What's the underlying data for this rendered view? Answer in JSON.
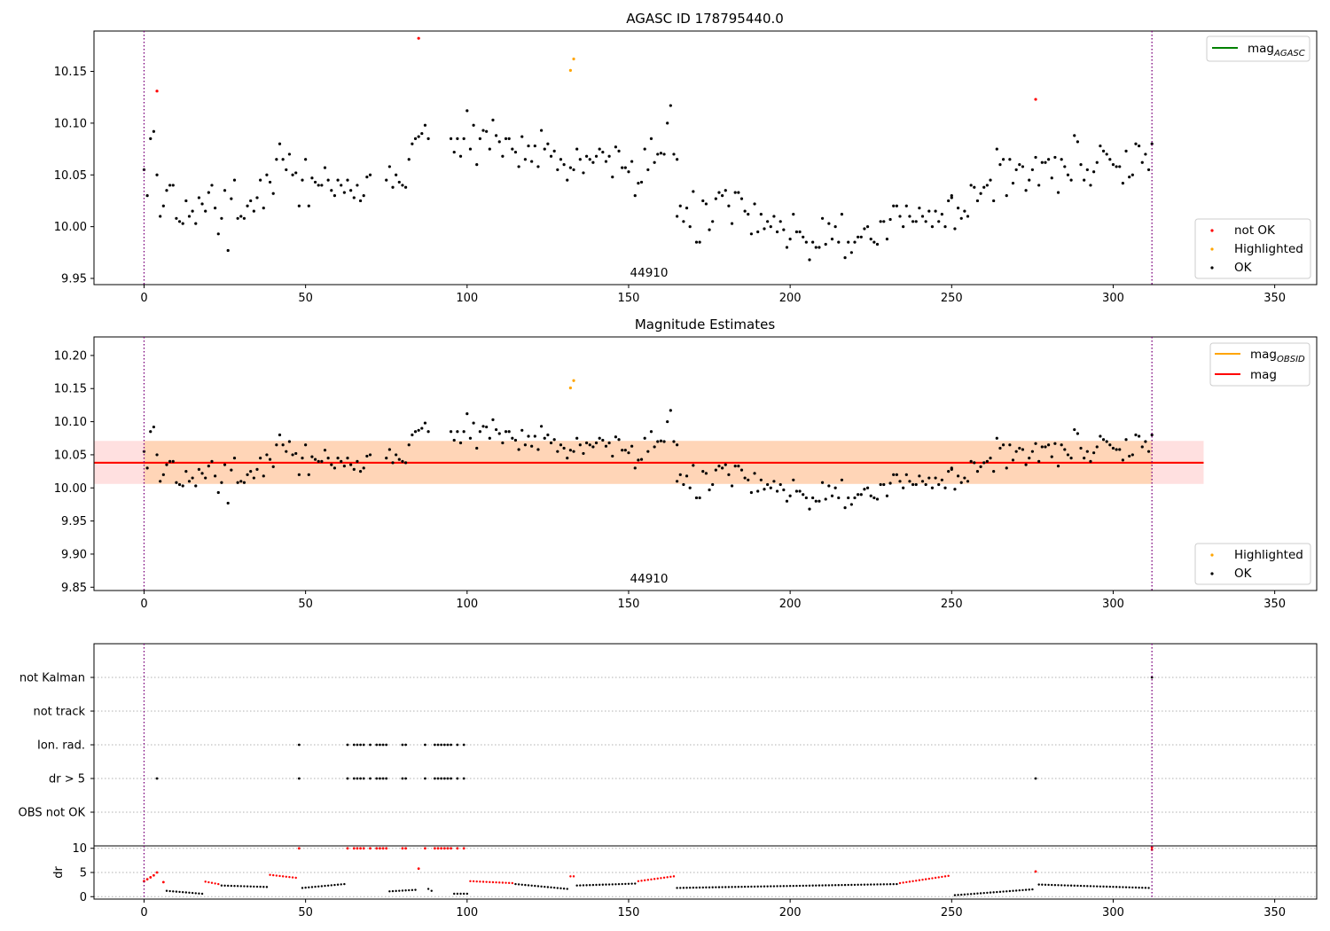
{
  "chart_data": [
    {
      "type": "scatter",
      "title": "AGASC ID 178795440.0",
      "annotation": "44910",
      "xlim": [
        -15.5,
        363
      ],
      "ylim": [
        9.944,
        10.189
      ],
      "x_ticks": [
        0,
        50,
        100,
        150,
        200,
        250,
        300,
        350
      ],
      "y_ticks": [
        "9.95",
        "10.00",
        "10.05",
        "10.10",
        "10.15"
      ],
      "y_tick_values": [
        9.95,
        10.0,
        10.05,
        10.1,
        10.15
      ],
      "vlines": [
        0,
        312
      ],
      "legend_lines": [
        {
          "label": "mag",
          "subscript": "AGASC",
          "color": "#008000"
        }
      ],
      "legend_markers": [
        {
          "label": "not OK",
          "color": "#ff0000"
        },
        {
          "label": "Highlighted",
          "color": "#ffa500"
        },
        {
          "label": "OK",
          "color": "#000000"
        }
      ],
      "series": [
        {
          "name": "not OK",
          "color": "#ff0000",
          "points": [
            [
              4,
              10.131
            ],
            [
              85,
              10.182
            ],
            [
              276,
              10.123
            ]
          ]
        },
        {
          "name": "Highlighted",
          "color": "#ffa500",
          "points": [
            [
              132,
              10.151
            ],
            [
              133,
              10.162
            ]
          ]
        }
      ],
      "ok_segments": [
        {
          "x_start": 0,
          "x_end": 70,
          "y": [
            10.055,
            10.03,
            10.085,
            10.092,
            10.05,
            10.01,
            10.02,
            10.035,
            10.04,
            10.04,
            10.008,
            10.005,
            10.003,
            10.025,
            10.01,
            10.015,
            10.003,
            10.028,
            10.022,
            10.015,
            10.033,
            10.04,
            10.018,
            9.993,
            10.008,
            10.035,
            9.977,
            10.027,
            10.045,
            10.008,
            10.01,
            10.008,
            10.02,
            10.025,
            10.015,
            10.028,
            10.045,
            10.018,
            10.05,
            10.043,
            10.032,
            10.065,
            10.08,
            10.065,
            10.055,
            10.07,
            10.05,
            10.052,
            10.02,
            10.045,
            10.065,
            10.02,
            10.047,
            10.043,
            10.04,
            10.04,
            10.057,
            10.045,
            10.035,
            10.03,
            10.045,
            10.04,
            10.033,
            10.045,
            10.035,
            10.028,
            10.04,
            10.025,
            10.03,
            10.048,
            10.05
          ]
        },
        {
          "x_start": 75,
          "x_end": 88,
          "y": [
            10.045,
            10.058,
            10.038,
            10.05,
            10.043,
            10.04,
            10.038,
            10.065,
            10.08,
            10.085,
            10.087,
            10.09,
            10.098,
            10.085
          ]
        },
        {
          "x_start": 95,
          "x_end": 165,
          "y": [
            10.085,
            10.072,
            10.085,
            10.068,
            10.085,
            10.112,
            10.075,
            10.098,
            10.06,
            10.085,
            10.093,
            10.092,
            10.075,
            10.103,
            10.088,
            10.082,
            10.068,
            10.085,
            10.085,
            10.075,
            10.072,
            10.058,
            10.087,
            10.065,
            10.078,
            10.063,
            10.078,
            10.058,
            10.093,
            10.075,
            10.08,
            10.068,
            10.073,
            10.055,
            10.065,
            10.06,
            10.045,
            10.057,
            10.055,
            10.075,
            10.065,
            10.052,
            10.068,
            10.065,
            10.062,
            10.068,
            10.075,
            10.072,
            10.063,
            10.068,
            10.048,
            10.077,
            10.073,
            10.057,
            10.057,
            10.053,
            10.063,
            10.03,
            10.042,
            10.043,
            10.075,
            10.055,
            10.085,
            10.062,
            10.07,
            10.071,
            10.07,
            10.1,
            10.117,
            10.07,
            10.065
          ]
        },
        {
          "x_start": 165,
          "x_end": 250,
          "y": [
            10.01,
            10.02,
            10.005,
            10.018,
            10.0,
            10.034,
            9.985,
            9.985,
            10.025,
            10.022,
            9.997,
            10.005,
            10.027,
            10.033,
            10.03,
            10.035,
            10.02,
            10.003,
            10.033,
            10.033,
            10.027,
            10.015,
            10.012,
            9.993,
            10.022,
            9.995,
            10.012,
            9.998,
            10.005,
            10.0,
            10.01,
            9.995,
            10.005,
            9.997,
            9.98,
            9.988,
            10.012,
            9.995,
            9.995,
            9.99,
            9.985,
            9.968,
            9.985,
            9.98,
            9.98,
            10.008,
            9.983,
            10.003,
            9.988,
            10.0,
            9.985,
            10.012,
            9.97,
            9.985,
            9.975,
            9.985,
            9.99,
            9.99,
            9.998,
            10.0,
            9.988,
            9.985,
            9.983,
            10.005,
            10.005,
            9.988,
            10.007,
            10.02,
            10.02,
            10.01,
            10.0,
            10.02,
            10.01,
            10.005,
            10.005,
            10.018,
            10.01,
            10.005,
            10.015,
            10.0,
            10.015,
            10.005,
            10.012,
            10.0,
            10.025,
            10.03
          ]
        },
        {
          "x_start": 250,
          "x_end": 312,
          "y": [
            10.028,
            9.998,
            10.018,
            10.008,
            10.015,
            10.01,
            10.04,
            10.038,
            10.025,
            10.032,
            10.038,
            10.04,
            10.045,
            10.025,
            10.075,
            10.06,
            10.065,
            10.03,
            10.065,
            10.042,
            10.055,
            10.06,
            10.058,
            10.035,
            10.045,
            10.055,
            10.067,
            10.04,
            10.062,
            10.062,
            10.065,
            10.047,
            10.067,
            10.033,
            10.065,
            10.058,
            10.05,
            10.045,
            10.088,
            10.082,
            10.06,
            10.045,
            10.055,
            10.04,
            10.053,
            10.062,
            10.078,
            10.073,
            10.07,
            10.065,
            10.06,
            10.058,
            10.058,
            10.042,
            10.073,
            10.048,
            10.05,
            10.08,
            10.078,
            10.062,
            10.07,
            10.055,
            10.08
          ]
        }
      ]
    },
    {
      "type": "scatter",
      "title": "Magnitude Estimates",
      "annotation": "44910",
      "xlim": [
        -15.5,
        363
      ],
      "ylim": [
        9.845,
        10.228
      ],
      "x_ticks": [
        0,
        50,
        100,
        150,
        200,
        250,
        300,
        350
      ],
      "y_ticks": [
        "9.85",
        "9.90",
        "9.95",
        "10.00",
        "10.05",
        "10.10",
        "10.15",
        "10.20"
      ],
      "y_tick_values": [
        9.85,
        9.9,
        9.95,
        10.0,
        10.05,
        10.1,
        10.15,
        10.2
      ],
      "vlines": [
        0,
        312
      ],
      "mag": 10.038,
      "band": [
        10.006,
        10.071
      ],
      "band_x": [
        -15.5,
        328
      ],
      "obsid_band_x": [
        0,
        312
      ],
      "legend_lines": [
        {
          "label": "mag",
          "subscript": "OBSID",
          "color": "#ffa500"
        },
        {
          "label": "mag",
          "subscript": "",
          "color": "#ff0000"
        }
      ],
      "legend_markers": [
        {
          "label": "Highlighted",
          "color": "#ffa500"
        },
        {
          "label": "OK",
          "color": "#000000"
        }
      ],
      "series": [
        {
          "name": "Highlighted",
          "color": "#ffa500",
          "points": [
            [
              132,
              10.151
            ],
            [
              133,
              10.162
            ]
          ]
        }
      ],
      "use_ok_from_first": true
    },
    {
      "type": "scatter",
      "xlim": [
        -15.5,
        363
      ],
      "categories": [
        "not Kalman",
        "not track",
        "Ion. rad.",
        "dr > 5",
        "OBS not OK"
      ],
      "vlines": [
        0,
        312
      ],
      "flags": {
        "not Kalman": [
          312
        ],
        "not track": [],
        "Ion. rad.": [
          48,
          63,
          65,
          66,
          67,
          68,
          70,
          72,
          73,
          74,
          75,
          80,
          81,
          87,
          90,
          91,
          92,
          93,
          94,
          95,
          97,
          99
        ],
        "dr > 5": [
          4,
          48,
          63,
          65,
          66,
          67,
          68,
          70,
          72,
          73,
          74,
          75,
          80,
          81,
          87,
          90,
          91,
          92,
          93,
          94,
          95,
          97,
          99,
          276
        ],
        "OBS not OK": []
      }
    },
    {
      "type": "scatter",
      "ylabel": "dr",
      "xlim": [
        -15.5,
        363
      ],
      "ylim": [
        -0.5,
        10.5
      ],
      "x_ticks": [
        0,
        50,
        100,
        150,
        200,
        250,
        300,
        350
      ],
      "y_ticks": [
        "0",
        "5",
        "10"
      ],
      "y_tick_values": [
        0,
        5,
        10
      ],
      "vlines": [
        0,
        312
      ],
      "threshold": 5,
      "red_points": [
        [
          0,
          3.2
        ],
        [
          1,
          3.6
        ],
        [
          2,
          4.0
        ],
        [
          3,
          4.4
        ],
        [
          4,
          5.0
        ],
        [
          6,
          3.0
        ],
        [
          48,
          10
        ],
        [
          63,
          10
        ],
        [
          65,
          10
        ],
        [
          66,
          10
        ],
        [
          67,
          10
        ],
        [
          68,
          10
        ],
        [
          70,
          10
        ],
        [
          72,
          10
        ],
        [
          73,
          10
        ],
        [
          74,
          10
        ],
        [
          75,
          10
        ],
        [
          80,
          10
        ],
        [
          81,
          10
        ],
        [
          87,
          10
        ],
        [
          90,
          10
        ],
        [
          91,
          10
        ],
        [
          92,
          10
        ],
        [
          93,
          10
        ],
        [
          94,
          10
        ],
        [
          95,
          10
        ],
        [
          97,
          10
        ],
        [
          99,
          10
        ],
        [
          85,
          5.8
        ],
        [
          276,
          5.2
        ],
        [
          312,
          9.7
        ],
        [
          312,
          10.2
        ]
      ],
      "red_ranges": [
        {
          "x_start": 19,
          "x_end": 23,
          "y_start": 3.1,
          "y_end": 2.6
        },
        {
          "x_start": 39,
          "x_end": 47,
          "y_start": 4.5,
          "y_end": 3.9
        },
        {
          "x_start": 101,
          "x_end": 114,
          "y_start": 3.2,
          "y_end": 2.8
        },
        {
          "x_start": 132,
          "x_end": 133,
          "y_start": 4.2,
          "y_end": 4.2
        },
        {
          "x_start": 153,
          "x_end": 164,
          "y_start": 3.2,
          "y_end": 4.2
        },
        {
          "x_start": 234,
          "x_end": 249,
          "y_start": 2.8,
          "y_end": 4.3
        }
      ],
      "black_ranges": [
        {
          "x_start": 7,
          "x_end": 18,
          "y_start": 1.2,
          "y_end": 0.6
        },
        {
          "x_start": 24,
          "x_end": 38,
          "y_start": 2.3,
          "y_end": 2.0
        },
        {
          "x_start": 49,
          "x_end": 62,
          "y_start": 1.8,
          "y_end": 2.6
        },
        {
          "x_start": 76,
          "x_end": 84,
          "y_start": 1.1,
          "y_end": 1.4
        },
        {
          "x_start": 88,
          "x_end": 89,
          "y_start": 1.6,
          "y_end": 1.2
        },
        {
          "x_start": 96,
          "x_end": 100,
          "y_start": 0.6,
          "y_end": 0.6
        },
        {
          "x_start": 115,
          "x_end": 131,
          "y_start": 2.6,
          "y_end": 1.6
        },
        {
          "x_start": 134,
          "x_end": 152,
          "y_start": 2.3,
          "y_end": 2.7
        },
        {
          "x_start": 165,
          "x_end": 233,
          "y_start": 1.8,
          "y_end": 2.6
        },
        {
          "x_start": 251,
          "x_end": 275,
          "y_start": 0.3,
          "y_end": 1.5
        },
        {
          "x_start": 277,
          "x_end": 311,
          "y_start": 2.5,
          "y_end": 1.8
        }
      ]
    }
  ]
}
